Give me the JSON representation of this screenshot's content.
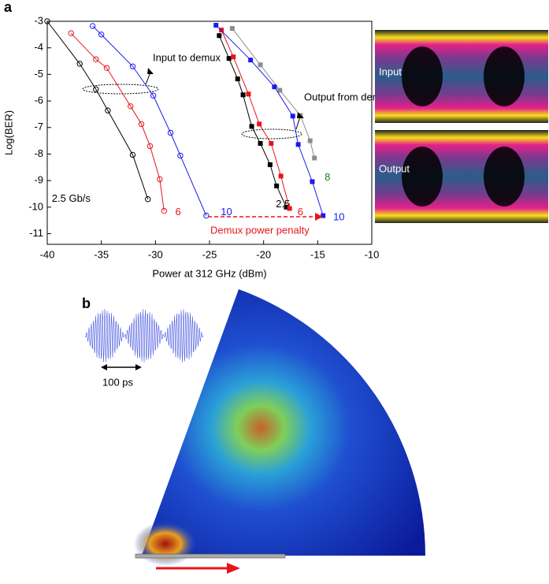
{
  "chart_data": {
    "type": "line",
    "panel_label": "a",
    "x_label": "Power at 312 GHz (dBm)",
    "y_label": "Log(BER)",
    "xlim": [
      -40,
      -10
    ],
    "ylim": [
      -11.4,
      -3
    ],
    "xticks": [
      -40,
      -35,
      -30,
      -25,
      -20,
      -15,
      -10
    ],
    "yticks": [
      -3,
      -4,
      -5,
      -6,
      -7,
      -8,
      -9,
      -10,
      -11
    ],
    "series": [
      {
        "name": "2.5 Gb/s",
        "color": "#000000",
        "marker": "circle",
        "x": [
          -40,
          -37,
          -35.5,
          -34.4,
          -32.1,
          -30.7
        ],
        "values": [
          -3,
          -4.6,
          -5.56,
          -6.36,
          -8.03,
          -9.7
        ]
      },
      {
        "name": "6",
        "color": "#e8141b",
        "marker": "circle",
        "x": [
          -37.8,
          -35.5,
          -34.5,
          -32.3,
          -31.3,
          -30.5,
          -29.6,
          -29.2
        ],
        "values": [
          -3.45,
          -4.43,
          -4.76,
          -6.2,
          -6.87,
          -7.7,
          -8.95,
          -10.14
        ]
      },
      {
        "name": "10",
        "color": "#1a1aee",
        "marker": "circle",
        "x": [
          -35.8,
          -35,
          -32.1,
          -30.2,
          -28.6,
          -27.7,
          -25.3
        ],
        "values": [
          -3.18,
          -3.5,
          -4.7,
          -5.8,
          -7.2,
          -8.06,
          -10.32
        ]
      },
      {
        "name": "2.5",
        "color": "#000000",
        "marker": "square",
        "x": [
          -24.1,
          -23.2,
          -22.4,
          -21.9,
          -21.1,
          -20.3,
          -19.4,
          -18.8,
          -17.9
        ],
        "values": [
          -3.54,
          -4.4,
          -5.17,
          -5.77,
          -6.96,
          -7.6,
          -8.4,
          -9.2,
          -10.0
        ]
      },
      {
        "name": "6",
        "color": "#e8141b",
        "marker": "square",
        "x": [
          -23.9,
          -22.8,
          -21.4,
          -20.4,
          -19.3,
          -18.4,
          -17.6
        ],
        "values": [
          -3.33,
          -4.34,
          -5.74,
          -6.87,
          -7.6,
          -8.83,
          -10.05
        ]
      },
      {
        "name": "8",
        "color": "#8c8c8c",
        "label_color": "#1a7a1a",
        "marker": "square",
        "x": [
          -22.9,
          -20.3,
          -18.5,
          -16.6,
          -15.7,
          -15.3
        ],
        "values": [
          -3.27,
          -4.64,
          -5.6,
          -6.55,
          -7.5,
          -8.15
        ]
      },
      {
        "name": "10",
        "color": "#1a1aee",
        "marker": "square",
        "x": [
          -24.4,
          -21.2,
          -19,
          -17.3,
          -16.8,
          -15.5,
          -14.5
        ],
        "values": [
          -3.15,
          -4.46,
          -5.47,
          -6.57,
          -7.64,
          -9.04,
          -10.32
        ]
      }
    ],
    "annotations": [
      "Input to demux",
      "Output from demux",
      "Demux power penalty"
    ]
  },
  "eye_diagrams": [
    "Input",
    "Output"
  ],
  "panel_b": {
    "label": "b",
    "scale_label": "100 ps"
  }
}
